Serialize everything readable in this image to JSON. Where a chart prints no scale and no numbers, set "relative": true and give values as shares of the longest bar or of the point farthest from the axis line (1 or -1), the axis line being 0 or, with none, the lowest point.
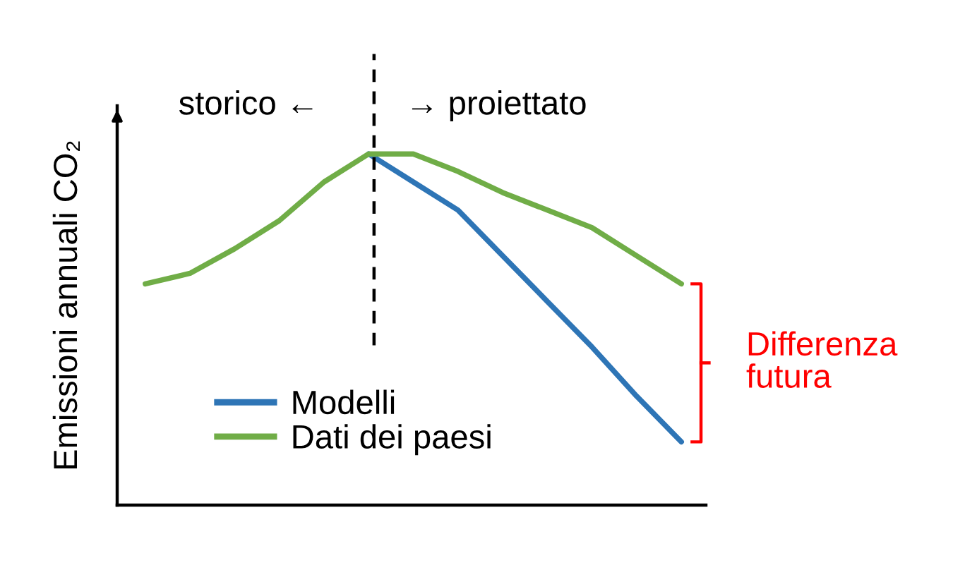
{
  "chart_data": {
    "type": "line",
    "ylabel": "Emissioni annuali CO₂",
    "categories": [
      null,
      null,
      null,
      null,
      null,
      null,
      null,
      null,
      null,
      null,
      null,
      null,
      null
    ],
    "relative": true,
    "series": [
      {
        "name": "Modelli",
        "color": "#2e75b6",
        "values": [
          null,
          null,
          null,
          null,
          null,
          1.0,
          0.92,
          0.84,
          0.71,
          0.58,
          0.45,
          0.31,
          0.18
        ]
      },
      {
        "name": "Dati dei paesi",
        "color": "#70ad47",
        "values": [
          0.63,
          0.66,
          0.73,
          0.81,
          0.92,
          1.0,
          1.0,
          0.95,
          0.89,
          0.84,
          0.79,
          0.71,
          0.63
        ]
      }
    ],
    "annotations": [
      "storico ←",
      "→ proiettato",
      "Differenza\nfutura"
    ],
    "legend": "bottom left",
    "marker": "none",
    "line_style": "solid"
  }
}
